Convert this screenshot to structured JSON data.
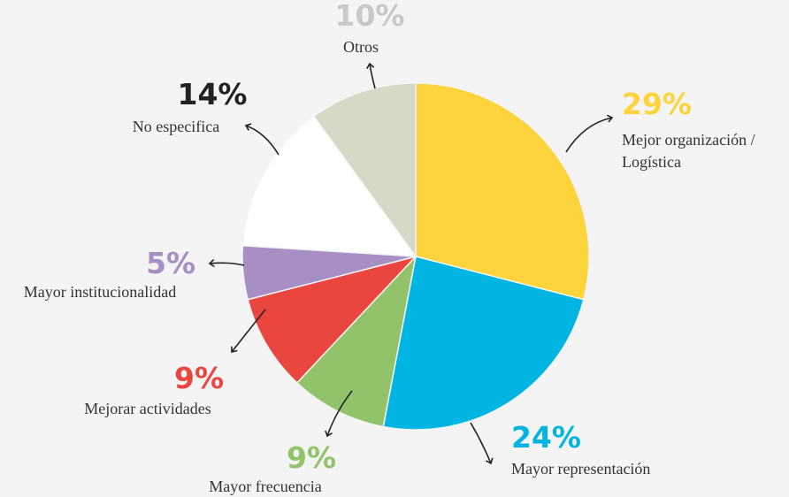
{
  "chart_data": {
    "type": "pie",
    "categories": [
      "Mejor organización / Logística",
      "Mayor representación",
      "Mayor frecuencia",
      "Mejorar actividades",
      "Mayor institucionalidad",
      "No especifica",
      "Otros"
    ],
    "values": [
      29,
      24,
      9,
      9,
      5,
      14,
      10
    ],
    "value_labels": [
      "29%",
      "24%",
      "9%",
      "9%",
      "5%",
      "14%",
      "10%"
    ],
    "colors": [
      "#fdd43c",
      "#00b5e2",
      "#92c36a",
      "#ea4640",
      "#a78fc5",
      "#ffffff",
      "#d5d9c6"
    ],
    "label_colors": [
      "#fdd43c",
      "#00b5e2",
      "#92c36a",
      "#ea4640",
      "#a78fc5",
      "#222222",
      "#c8c8c8"
    ]
  }
}
